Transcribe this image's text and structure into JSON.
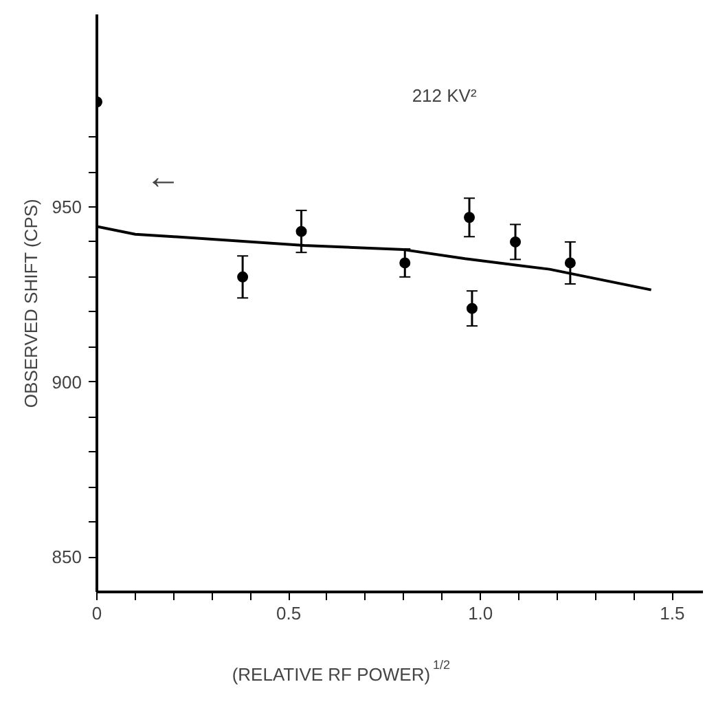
{
  "chart_data": {
    "type": "scatter",
    "xlabel": "(RELATIVE RF POWER)$^{1/2}$",
    "ylabel": "OBSERVED SHIFT (CPS)",
    "annotations": [
      "212 KV²",
      "←"
    ],
    "series": [
      {
        "marker": "circle",
        "color": "#000000",
        "x": [
          0,
          0.38,
          0.533,
          0.803,
          0.971,
          0.978,
          1.091,
          1.234
        ],
        "values": [
          980,
          930,
          943,
          934,
          947,
          921,
          940,
          934
        ],
        "errors": [
          null,
          6,
          6,
          4,
          5.5,
          5,
          5,
          6
        ]
      },
      {
        "type": "line",
        "color": "#000000",
        "x": [
          0,
          0.1,
          0.2,
          0.54,
          0.8,
          0.96,
          1.18,
          1.445
        ],
        "values": [
          944.4,
          942.2,
          941.5,
          939,
          937.8,
          935.2,
          932.2,
          926.3
        ]
      }
    ],
    "grid": false,
    "xlim": [
      0,
      1.58
    ],
    "ylim": [
      840,
      1005
    ],
    "xticks": [
      0,
      {
        "value": 0.1,
        "label": null
      },
      {
        "value": 0.2,
        "label": null
      },
      {
        "value": 0.3,
        "label": null
      },
      {
        "value": 0.4,
        "label": null
      },
      0.5,
      {
        "value": 0.6,
        "label": null
      },
      {
        "value": 0.7,
        "label": null
      },
      {
        "value": 0.8,
        "label": null
      },
      {
        "value": 0.9,
        "label": null
      },
      {
        "value": 1.0,
        "label": "1.0"
      },
      {
        "value": 1.1,
        "label": null
      },
      {
        "value": 1.2,
        "label": null
      },
      {
        "value": 1.3,
        "label": null
      },
      {
        "value": 1.4,
        "label": null
      },
      1.5
    ],
    "yticks": [
      850,
      {
        "value": 860,
        "label": null
      },
      {
        "value": 870,
        "label": null
      },
      {
        "value": 880,
        "label": null
      },
      {
        "value": 890,
        "label": null
      },
      900,
      {
        "value": 910,
        "label": null
      },
      {
        "value": 920,
        "label": null
      },
      {
        "value": 930,
        "label": null
      },
      {
        "value": 940,
        "label": null
      },
      950,
      {
        "value": 960,
        "label": null
      },
      {
        "value": 970,
        "label": null
      }
    ]
  }
}
